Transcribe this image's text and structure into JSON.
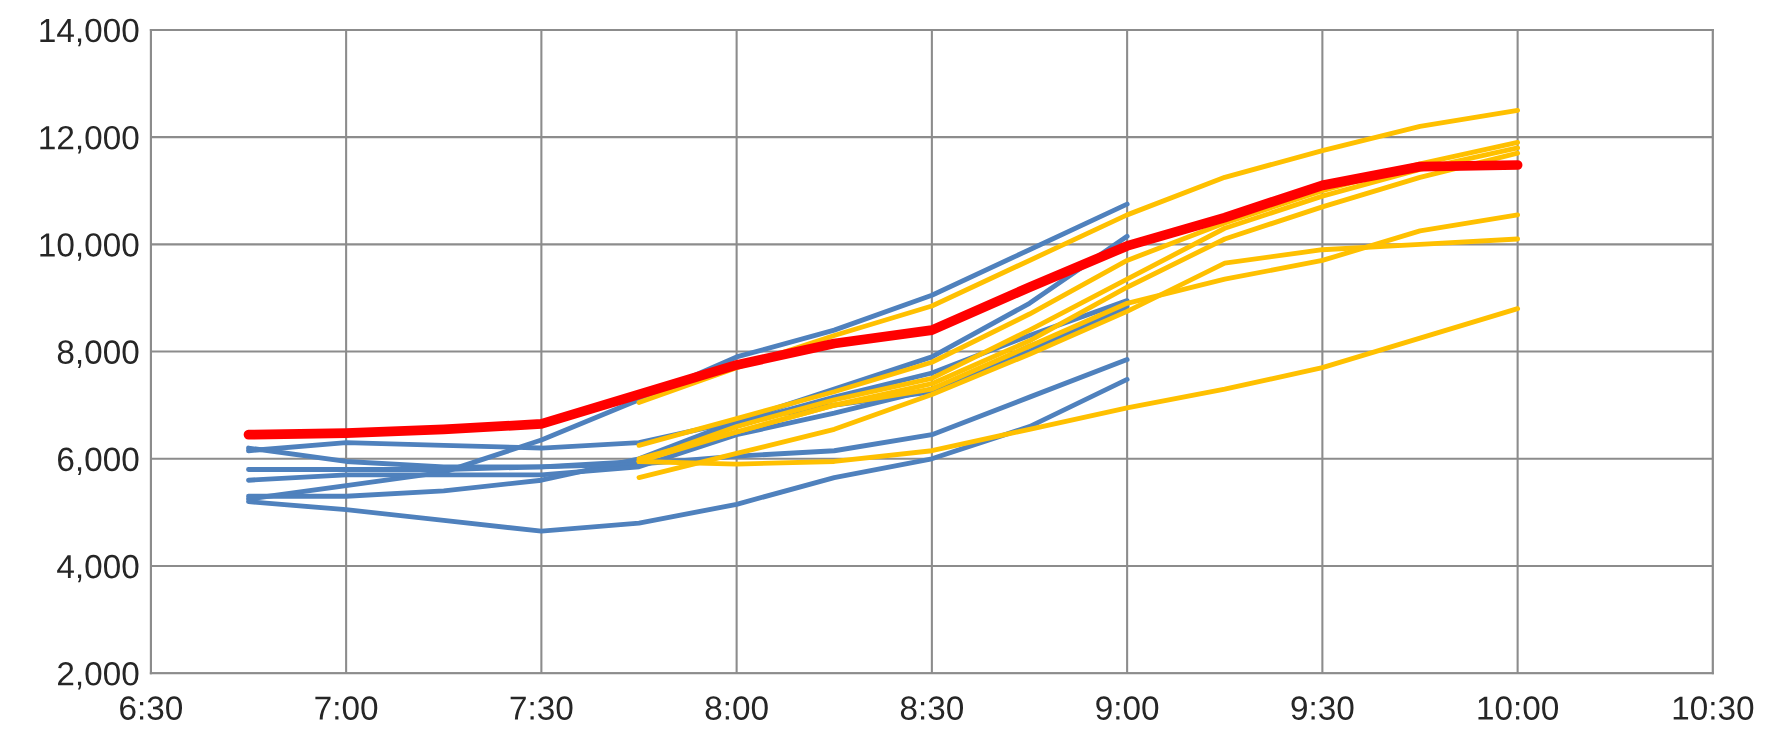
{
  "chart_data": {
    "type": "line",
    "xlim": [
      6.5,
      10.5
    ],
    "xticks": [
      {
        "value": 6.5,
        "label": "6:30"
      },
      {
        "value": 7.0,
        "label": "7:00"
      },
      {
        "value": 7.5,
        "label": "7:30"
      },
      {
        "value": 8.0,
        "label": "8:00"
      },
      {
        "value": 8.5,
        "label": "8:30"
      },
      {
        "value": 9.0,
        "label": "9:00"
      },
      {
        "value": 9.5,
        "label": "9:30"
      },
      {
        "value": 10.0,
        "label": "10:00"
      },
      {
        "value": 10.5,
        "label": "10:30"
      }
    ],
    "ylim": [
      2000,
      14000
    ],
    "yticks": [
      {
        "value": 2000,
        "label": "2,000"
      },
      {
        "value": 4000,
        "label": "4,000"
      },
      {
        "value": 6000,
        "label": "6,000"
      },
      {
        "value": 8000,
        "label": "8,000"
      },
      {
        "value": 10000,
        "label": "10,000"
      },
      {
        "value": 12000,
        "label": "12,000"
      },
      {
        "value": 14000,
        "label": "14,000"
      }
    ],
    "grid": true,
    "line_style": "solid",
    "marker": "none",
    "series": [
      {
        "color": "#4f81bd",
        "x": [
          6.75,
          7.0,
          7.25,
          7.5,
          7.75,
          8.0,
          8.25,
          8.5,
          8.75,
          9.0
        ],
        "values": [
          5250,
          5500,
          5750,
          6350,
          7100,
          7900,
          8400,
          9050,
          9900,
          10750
        ]
      },
      {
        "color": "#4f81bd",
        "x": [
          6.75,
          7.0,
          7.25,
          7.5,
          7.75,
          8.0,
          8.25,
          8.5,
          8.75,
          9.0
        ],
        "values": [
          5300,
          5300,
          5400,
          5600,
          6000,
          6700,
          7300,
          7900,
          8900,
          10150
        ]
      },
      {
        "color": "#4f81bd",
        "x": [
          6.75,
          7.0,
          7.25,
          7.5,
          7.75,
          8.0,
          8.25,
          8.5,
          8.75,
          9.0
        ],
        "values": [
          6200,
          5950,
          5850,
          5850,
          5950,
          6650,
          7150,
          7600,
          8300,
          8950
        ]
      },
      {
        "color": "#4f81bd",
        "x": [
          6.75,
          7.0,
          7.25,
          7.5,
          7.75,
          8.0,
          8.25,
          8.5,
          8.75,
          9.0
        ],
        "values": [
          6150,
          6300,
          6250,
          6200,
          6300,
          6700,
          7000,
          7250,
          8100,
          8800
        ]
      },
      {
        "color": "#4f81bd",
        "x": [
          6.75,
          7.0,
          7.25,
          7.5,
          7.75,
          8.0,
          8.25,
          8.5,
          8.75,
          9.0
        ],
        "values": [
          5800,
          5800,
          5800,
          5850,
          5900,
          6050,
          6150,
          6450,
          7150,
          7850
        ]
      },
      {
        "color": "#4f81bd",
        "x": [
          6.75,
          7.0,
          7.25,
          7.5,
          7.75,
          8.0,
          8.25,
          8.5,
          8.75,
          9.0
        ],
        "values": [
          5200,
          5050,
          4850,
          4650,
          4800,
          5150,
          5650,
          6000,
          6600,
          7480
        ]
      },
      {
        "color": "#4f81bd",
        "x": [
          6.75,
          7.0,
          7.25,
          7.5,
          7.75,
          8.0,
          8.25,
          8.5,
          8.75,
          9.0
        ],
        "values": [
          5600,
          5700,
          5700,
          5700,
          5850,
          6450,
          6850,
          7300,
          8000,
          8850
        ]
      },
      {
        "color": "#ffc000",
        "x": [
          7.75,
          8.0,
          8.25,
          8.5,
          8.75,
          9.0,
          9.25,
          9.5,
          9.75,
          10.0
        ],
        "values": [
          7050,
          7700,
          8300,
          8850,
          9700,
          10550,
          11250,
          11750,
          12200,
          12500
        ]
      },
      {
        "color": "#ffc000",
        "x": [
          7.75,
          8.0,
          8.25,
          8.5,
          8.75,
          9.0,
          9.25,
          9.5,
          9.75,
          10.0
        ],
        "values": [
          6250,
          6750,
          7250,
          7800,
          8700,
          9700,
          10400,
          11000,
          11500,
          11900
        ]
      },
      {
        "color": "#ffc000",
        "x": [
          7.75,
          8.0,
          8.25,
          8.5,
          8.75,
          9.0,
          9.25,
          9.5,
          9.75,
          10.0
        ],
        "values": [
          5950,
          6600,
          7100,
          7500,
          8400,
          9350,
          10300,
          10900,
          11400,
          11800
        ]
      },
      {
        "color": "#ffc000",
        "x": [
          7.75,
          8.0,
          8.25,
          8.5,
          8.75,
          9.0,
          9.25,
          9.5,
          9.75,
          10.0
        ],
        "values": [
          6000,
          6500,
          7000,
          7400,
          8200,
          9200,
          10100,
          10700,
          11250,
          11700
        ]
      },
      {
        "color": "#ffc000",
        "x": [
          7.75,
          8.0,
          8.25,
          8.5,
          8.75,
          9.0,
          9.25,
          9.5,
          9.75,
          10.0
        ],
        "values": [
          5950,
          6500,
          7000,
          7300,
          8100,
          8900,
          9350,
          9700,
          10250,
          10550
        ]
      },
      {
        "color": "#ffc000",
        "x": [
          7.75,
          8.0,
          8.25,
          8.5,
          8.75,
          9.0,
          9.25,
          9.5,
          9.75,
          10.0
        ],
        "values": [
          5650,
          6100,
          6550,
          7200,
          7950,
          8750,
          9650,
          9900,
          10000,
          10100
        ]
      },
      {
        "color": "#ffc000",
        "x": [
          7.75,
          8.0,
          8.25,
          8.5,
          8.75,
          9.0,
          9.25,
          9.5,
          9.75,
          10.0
        ],
        "values": [
          5950,
          5900,
          5950,
          6150,
          6550,
          6950,
          7300,
          7700,
          8250,
          8800
        ]
      },
      {
        "color": "#ff0000",
        "x": [
          6.75,
          7.0,
          7.25,
          7.5,
          7.75,
          8.0,
          8.25,
          8.5,
          8.75,
          9.0,
          9.25,
          9.5,
          9.75,
          10.0
        ],
        "values": [
          6450,
          6480,
          6550,
          6650,
          7200,
          7750,
          8150,
          8400,
          9200,
          9970,
          10500,
          11100,
          11450,
          11480
        ]
      }
    ]
  }
}
